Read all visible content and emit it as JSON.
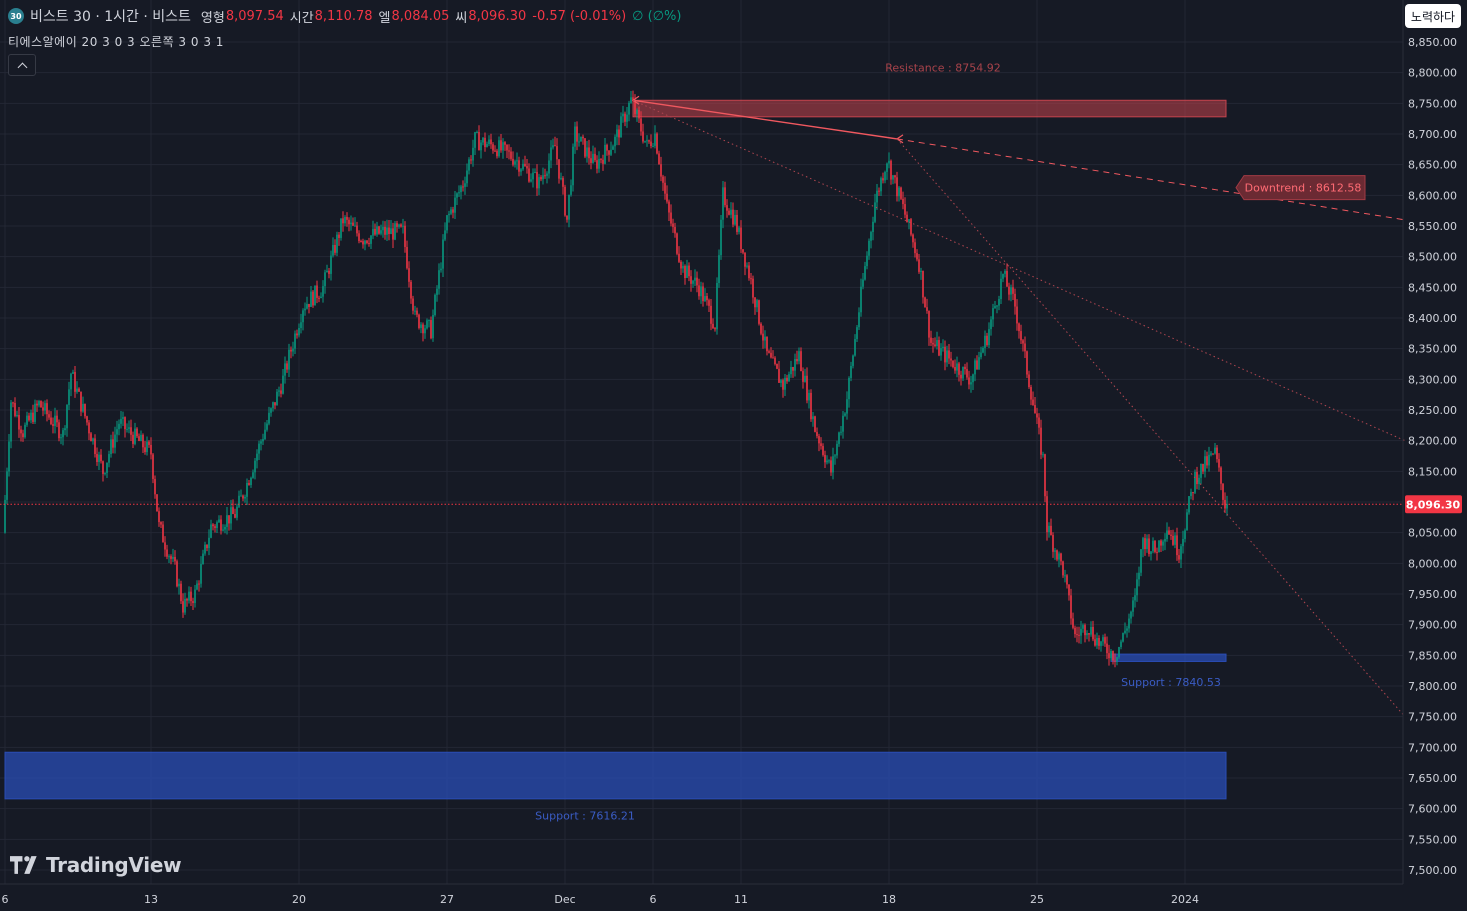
{
  "header": {
    "symbol_badge": "30",
    "title": "비스트 30 · 1시간 · 비스트",
    "open_label": "영형",
    "open_value": "8,097.54",
    "high_label": "시간",
    "high_value": "8,110.78",
    "low_label": "엘",
    "low_value": "8,084.05",
    "close_label": "씨",
    "close_value": "8,096.30",
    "change": "-0.57 (-0.01%)",
    "volume": "∅ (∅%)"
  },
  "indicator_label": "티에스알에이 20 3 0 3 오른쪽 3 0 3 1",
  "login_button": "노력하다",
  "logo_text": "TradingView",
  "colors": {
    "background": "#161a25",
    "grid": "#232734",
    "up": "#089981",
    "down": "#f23645",
    "resistance_zone": "#c4434d",
    "support_zone": "#2a4db5",
    "text": "#d1d4dc"
  },
  "chart_data": {
    "type": "candlestick",
    "title": "비스트 30 · 1시간 · 비스트",
    "price_axis": {
      "ticks": [
        "8,850.00",
        "8,800.00",
        "8,750.00",
        "8,700.00",
        "8,650.00",
        "8,600.00",
        "8,550.00",
        "8,500.00",
        "8,450.00",
        "8,400.00",
        "8,350.00",
        "8,300.00",
        "8,250.00",
        "8,200.00",
        "8,150.00",
        "8,100.00",
        "8,050.00",
        "8,000.00",
        "7,950.00",
        "7,900.00",
        "7,850.00",
        "7,800.00",
        "7,750.00",
        "7,700.00",
        "7,650.00",
        "7,600.00",
        "7,550.00",
        "7,500.00"
      ],
      "range": [
        7480,
        8880
      ],
      "last_price": 8096.3,
      "last_price_label": "8,096.30"
    },
    "time_axis": {
      "labels": [
        "6",
        "13",
        "20",
        "27",
        "Dec",
        "6",
        "11",
        "18",
        "25",
        "2024"
      ],
      "label_bars": [
        0,
        73,
        147,
        221,
        280,
        324,
        368,
        442,
        516,
        590
      ]
    },
    "bar_count": 612,
    "waypoints": [
      [
        0,
        8050
      ],
      [
        4,
        8265
      ],
      [
        10,
        8215
      ],
      [
        18,
        8260
      ],
      [
        30,
        8210
      ],
      [
        34,
        8310
      ],
      [
        50,
        8150
      ],
      [
        58,
        8230
      ],
      [
        74,
        8180
      ],
      [
        78,
        8060
      ],
      [
        86,
        7990
      ],
      [
        90,
        7930
      ],
      [
        96,
        7950
      ],
      [
        104,
        8060
      ],
      [
        110,
        8070
      ],
      [
        116,
        8080
      ],
      [
        122,
        8130
      ],
      [
        130,
        8210
      ],
      [
        140,
        8300
      ],
      [
        150,
        8420
      ],
      [
        160,
        8450
      ],
      [
        170,
        8560
      ],
      [
        180,
        8530
      ],
      [
        190,
        8540
      ],
      [
        200,
        8540
      ],
      [
        206,
        8400
      ],
      [
        214,
        8380
      ],
      [
        222,
        8560
      ],
      [
        230,
        8620
      ],
      [
        236,
        8690
      ],
      [
        246,
        8680
      ],
      [
        256,
        8660
      ],
      [
        268,
        8620
      ],
      [
        276,
        8680
      ],
      [
        282,
        8560
      ],
      [
        286,
        8700
      ],
      [
        296,
        8650
      ],
      [
        306,
        8690
      ],
      [
        314,
        8755
      ],
      [
        322,
        8680
      ],
      [
        326,
        8700
      ],
      [
        332,
        8580
      ],
      [
        340,
        8480
      ],
      [
        348,
        8450
      ],
      [
        356,
        8390
      ],
      [
        360,
        8600
      ],
      [
        366,
        8560
      ],
      [
        374,
        8460
      ],
      [
        382,
        8340
      ],
      [
        390,
        8290
      ],
      [
        398,
        8340
      ],
      [
        406,
        8220
      ],
      [
        414,
        8150
      ],
      [
        422,
        8270
      ],
      [
        430,
        8460
      ],
      [
        436,
        8590
      ],
      [
        442,
        8660
      ],
      [
        450,
        8580
      ],
      [
        458,
        8490
      ],
      [
        464,
        8360
      ],
      [
        474,
        8330
      ],
      [
        484,
        8300
      ],
      [
        492,
        8370
      ],
      [
        500,
        8470
      ],
      [
        506,
        8420
      ],
      [
        514,
        8280
      ],
      [
        520,
        8170
      ],
      [
        522,
        8060
      ],
      [
        530,
        7990
      ],
      [
        536,
        7880
      ],
      [
        542,
        7900
      ],
      [
        548,
        7870
      ],
      [
        552,
        7860
      ],
      [
        556,
        7850
      ],
      [
        560,
        7880
      ],
      [
        566,
        7940
      ],
      [
        570,
        8040
      ],
      [
        576,
        8020
      ],
      [
        582,
        8060
      ],
      [
        588,
        8020
      ],
      [
        592,
        8080
      ],
      [
        596,
        8140
      ],
      [
        606,
        8180
      ],
      [
        611,
        8096
      ]
    ],
    "zones": [
      {
        "name": "Resistance",
        "label": "Resistance : 8754.92",
        "price_top": 8755,
        "price_bottom": 8728,
        "bar_start": 314,
        "bar_end": 612,
        "label_bar": 469,
        "label_price": 8802
      },
      {
        "name": "Support",
        "label": "Support : 7840.53",
        "price_top": 7852,
        "price_bottom": 7840,
        "bar_start": 553,
        "bar_end": 612,
        "label_bar": 583,
        "label_price": 7800
      },
      {
        "name": "Support",
        "label": "Support : 7616.21",
        "price_top": 7692,
        "price_bottom": 7616,
        "bar_start": 0,
        "bar_end": 612,
        "label_bar": 290,
        "label_price": 7582
      }
    ],
    "trendlines": [
      {
        "from": [
          314,
          8755
        ],
        "to": [
          446,
          8692
        ],
        "style": "solid",
        "arrows": true
      },
      {
        "from": [
          446,
          8692
        ],
        "to": [
          700,
          8560
        ],
        "style": "dashed"
      },
      {
        "from": [
          314,
          8755
        ],
        "to": [
          700,
          8200
        ],
        "style": "dotted"
      },
      {
        "from": [
          446,
          8692
        ],
        "to": [
          700,
          7750
        ],
        "style": "dotted"
      }
    ],
    "callout": {
      "label": "Downtrend : 8612.58",
      "bar": 617,
      "price": 8612.58
    }
  }
}
